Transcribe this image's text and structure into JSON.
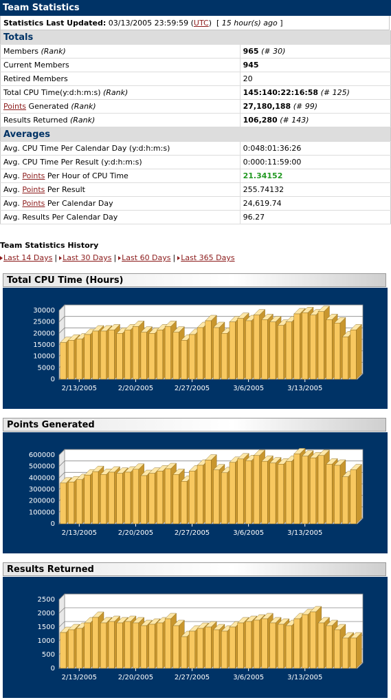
{
  "title": "Team Statistics",
  "updated": {
    "label": "Statistics Last Updated:",
    "datetime": "03/13/2005 23:59:59",
    "tz": "UTC",
    "ago": "15 hour(s) ago"
  },
  "totals": {
    "heading": "Totals",
    "members": {
      "label": "Members",
      "rank_label": "(Rank)",
      "value": "965",
      "rank": "(# 30)"
    },
    "current_members": {
      "label": "Current Members",
      "value": "945"
    },
    "retired_members": {
      "label": "Retired Members",
      "value": "20"
    },
    "total_cpu": {
      "label": "Total CPU Time(y:d:h:m:s)",
      "rank_label": "(Rank)",
      "value": "145:140:22:16:58",
      "rank": "(# 125)"
    },
    "points": {
      "link": "Points",
      "label": "Generated",
      "rank_label": "(Rank)",
      "value": "27,180,188",
      "rank": "(# 99)"
    },
    "results": {
      "label": "Results Returned",
      "rank_label": "(Rank)",
      "value": "106,280",
      "rank": "(# 143)"
    }
  },
  "averages": {
    "heading": "Averages",
    "avg_prefix": "Avg.",
    "points_link": "Points",
    "cpu_per_day": {
      "label": "Avg. CPU Time Per Calendar Day (y:d:h:m:s)",
      "value": "0:048:01:36:26"
    },
    "cpu_per_result": {
      "label": "Avg. CPU Time Per Result (y:d:h:m:s)",
      "value": "0:000:11:59:00"
    },
    "points_per_hour": {
      "label": "Per Hour of CPU Time",
      "value": "21.34152"
    },
    "points_per_result": {
      "label": "Per Result",
      "value": "255.74132"
    },
    "points_per_day": {
      "label": "Per Calendar Day",
      "value": "24,619.74"
    },
    "results_per_day": {
      "label": "Avg. Results Per Calendar Day",
      "value": "96.27"
    }
  },
  "history": {
    "title": "Team Statistics History",
    "links": [
      "Last 14 Days",
      "Last 30 Days",
      "Last 60 Days",
      "Last 365 Days"
    ],
    "separator": "|"
  },
  "colors": {
    "header_bg": "#003366",
    "chart_bg": "#003366",
    "bar": "#f8c860",
    "link": "#8b1a1a",
    "highlight": "#229922"
  },
  "chart_data": [
    {
      "type": "bar",
      "title": "Total CPU Time (Hours)",
      "x_tick_labels": [
        "2/13/2005",
        "2/20/2005",
        "2/27/2005",
        "3/6/2005",
        "3/13/2005"
      ],
      "y_tick_labels": [
        "0",
        "5000",
        "10000",
        "15000",
        "20000",
        "25000",
        "30000"
      ],
      "ylim": [
        0,
        30000
      ],
      "values": [
        16000,
        17000,
        17500,
        19500,
        21000,
        21000,
        21500,
        20000,
        21500,
        23000,
        20500,
        20000,
        21500,
        23000,
        20500,
        17000,
        19500,
        22500,
        25500,
        22500,
        20000,
        25000,
        26500,
        25500,
        28000,
        26000,
        25000,
        23500,
        25000,
        28500,
        29000,
        28000,
        29500,
        26000,
        24500,
        18500,
        21500
      ]
    },
    {
      "type": "bar",
      "title": "Points Generated",
      "x_tick_labels": [
        "2/13/2005",
        "2/20/2005",
        "2/27/2005",
        "3/6/2005",
        "3/13/2005"
      ],
      "y_tick_labels": [
        "0",
        "100000",
        "200000",
        "300000",
        "400000",
        "500000",
        "600000"
      ],
      "ylim": [
        0,
        600000
      ],
      "values": [
        355000,
        365000,
        385000,
        425000,
        455000,
        430000,
        450000,
        440000,
        450000,
        475000,
        420000,
        440000,
        460000,
        480000,
        430000,
        370000,
        460000,
        510000,
        555000,
        470000,
        445000,
        535000,
        565000,
        550000,
        595000,
        545000,
        530000,
        520000,
        545000,
        610000,
        590000,
        575000,
        595000,
        520000,
        510000,
        410000,
        470000
      ]
    },
    {
      "type": "bar",
      "title": "Results Returned",
      "x_tick_labels": [
        "2/13/2005",
        "2/20/2005",
        "2/27/2005",
        "3/6/2005",
        "3/13/2005"
      ],
      "y_tick_labels": [
        "0",
        "500",
        "1000",
        "1500",
        "2000",
        "2500"
      ],
      "ylim": [
        0,
        2500
      ],
      "values": [
        1300,
        1400,
        1450,
        1650,
        1850,
        1650,
        1700,
        1650,
        1700,
        1650,
        1550,
        1600,
        1650,
        1800,
        1550,
        1150,
        1350,
        1450,
        1500,
        1400,
        1350,
        1500,
        1650,
        1700,
        1750,
        1800,
        1650,
        1600,
        1550,
        1800,
        1950,
        2050,
        1650,
        1550,
        1400,
        1100,
        1100
      ]
    }
  ]
}
